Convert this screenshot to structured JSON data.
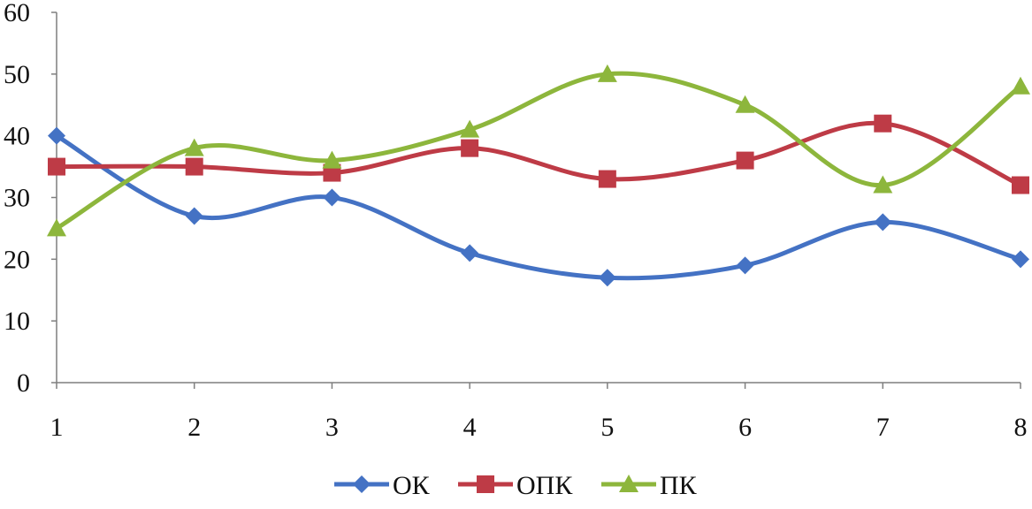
{
  "chart_data": {
    "type": "line",
    "smooth": true,
    "x": [
      1,
      2,
      3,
      4,
      5,
      6,
      7,
      8
    ],
    "xticks": [
      "1",
      "2",
      "3",
      "4",
      "5",
      "6",
      "7",
      "8"
    ],
    "ylim": [
      0,
      60
    ],
    "yticks": [
      "0",
      "10",
      "20",
      "30",
      "40",
      "50",
      "60"
    ],
    "grid": false,
    "legend_position": "bottom",
    "series": [
      {
        "name": "ОК",
        "color": "#4472C4",
        "marker": "diamond",
        "values": [
          40,
          27,
          30,
          21,
          17,
          19,
          26,
          20
        ]
      },
      {
        "name": "ОПК",
        "color": "#BE3B46",
        "marker": "square",
        "values": [
          35,
          35,
          34,
          38,
          33,
          36,
          42,
          32
        ]
      },
      {
        "name": "ПК",
        "color": "#8DB63C",
        "marker": "triangle",
        "values": [
          25,
          38,
          36,
          41,
          50,
          45,
          32,
          48
        ]
      }
    ]
  }
}
